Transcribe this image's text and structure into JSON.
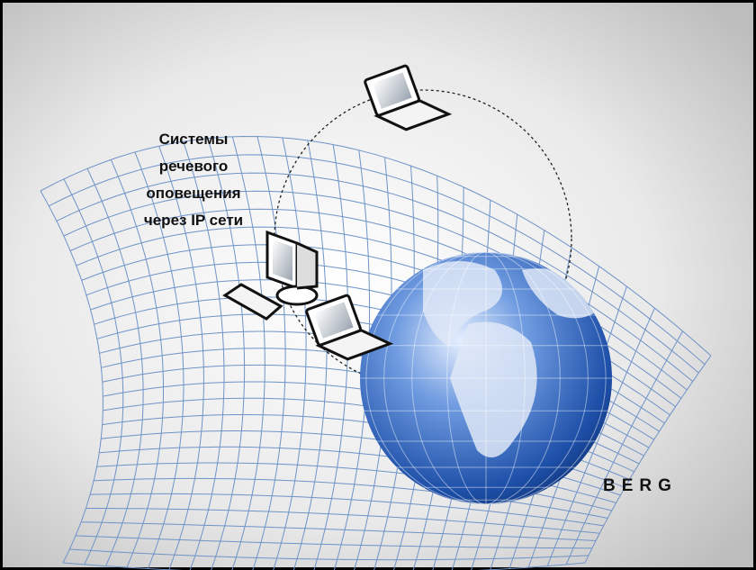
{
  "caption": {
    "lines": [
      "Системы",
      "речевого",
      "оповещения",
      "через IP сети"
    ]
  },
  "brand": "BERG"
}
